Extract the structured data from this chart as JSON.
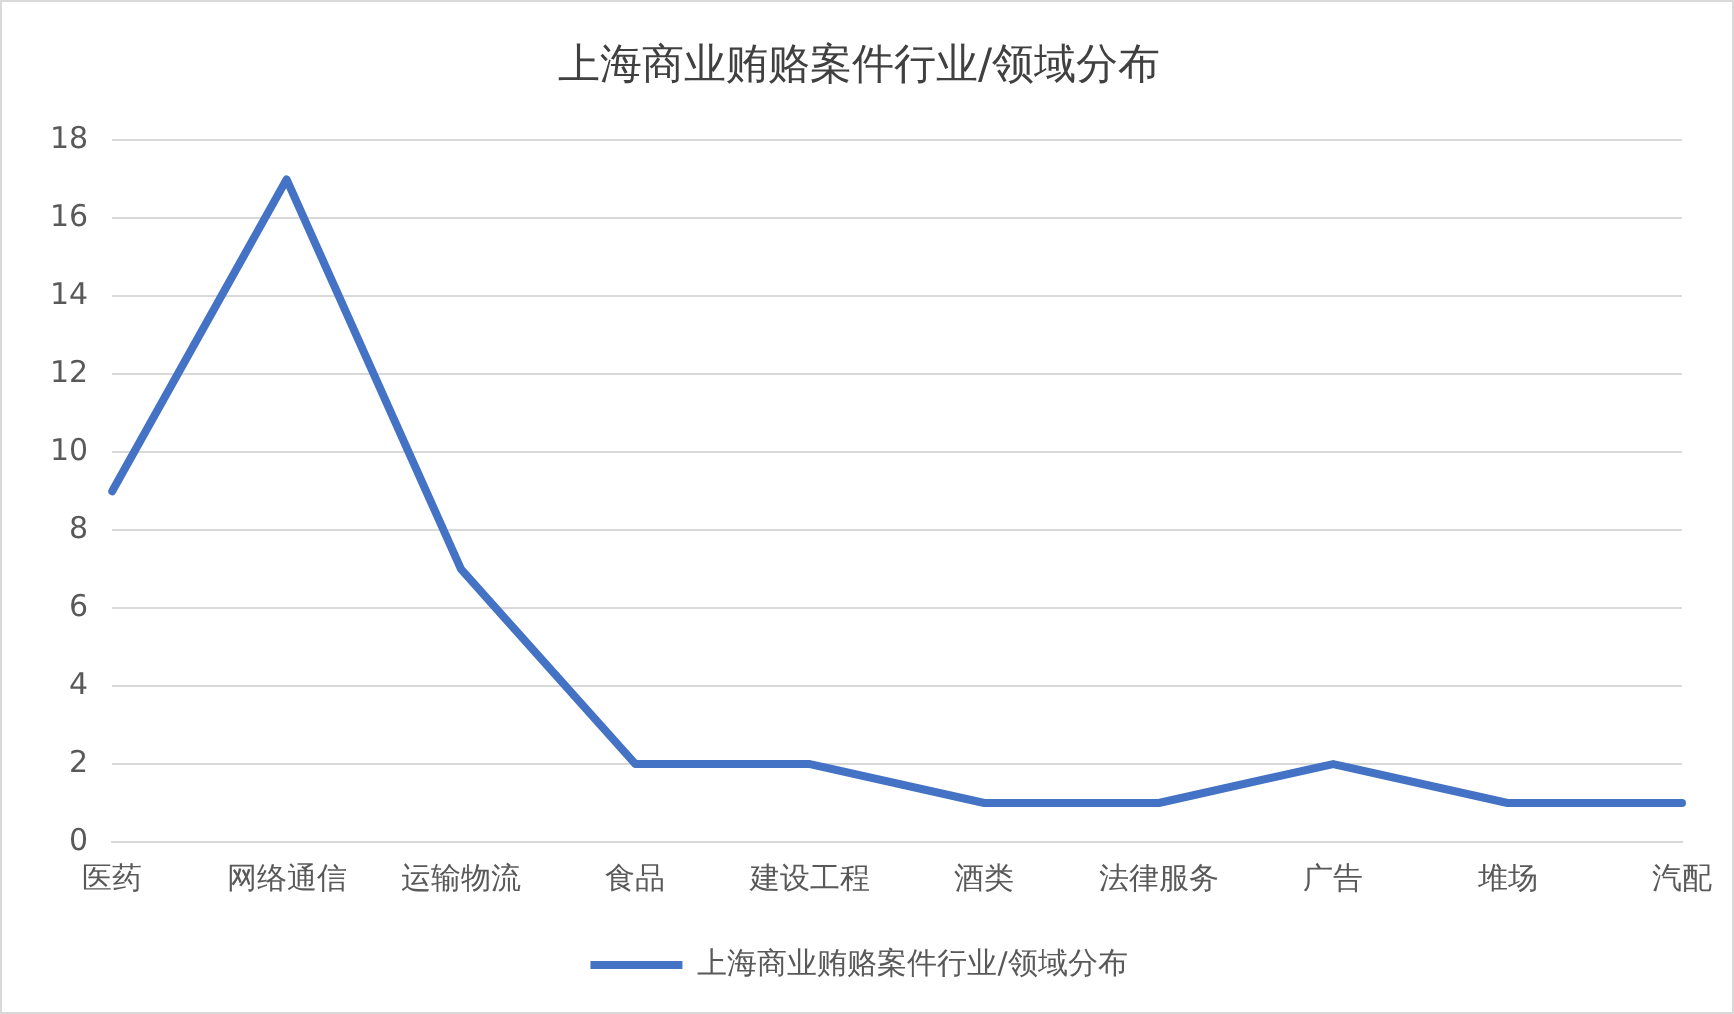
{
  "chart_data": {
    "type": "line",
    "title": "上海商业贿赂案件行业/领域分布",
    "categories": [
      "医药",
      "网络通信",
      "运输物流",
      "食品",
      "建设工程",
      "酒类",
      "法律服务",
      "广告",
      "堆场",
      "汽配"
    ],
    "series": [
      {
        "name": "上海商业贿赂案件行业/领域分布",
        "color": "#4472c4",
        "values": [
          9,
          17,
          7,
          2,
          2,
          1,
          1,
          2,
          1,
          1
        ]
      }
    ],
    "ylim": [
      0,
      18
    ],
    "yticks": [
      0,
      2,
      4,
      6,
      8,
      10,
      12,
      14,
      16,
      18
    ],
    "grid": "y",
    "legend": "bottom",
    "marker": "none",
    "line_style": "solid"
  }
}
